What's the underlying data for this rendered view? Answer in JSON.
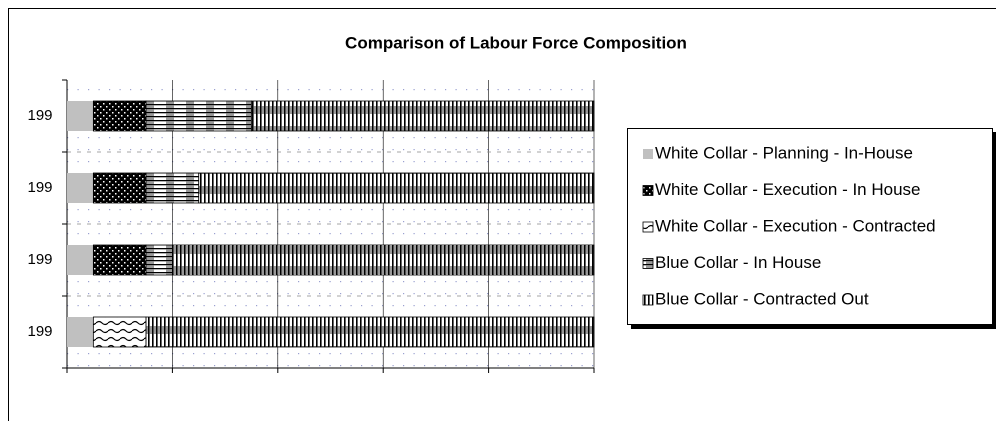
{
  "chart_data": {
    "type": "stacked_bar_horizontal",
    "title": "Comparison of Labour Force Composition",
    "categories": [
      "199",
      "199",
      "199",
      "199"
    ],
    "series": [
      {
        "name": "White Collar - Planning - In-House",
        "color": "#c0c0c0",
        "values": [
          5,
          5,
          5,
          5
        ]
      },
      {
        "name": "White Collar - Execution - In House",
        "color": "#000000",
        "values": [
          10,
          10,
          10,
          0
        ]
      },
      {
        "name": "White Collar - Execution - Contracted",
        "color": "#000000",
        "values": [
          0,
          0,
          0,
          10
        ]
      },
      {
        "name": "Blue Collar - In House",
        "color": "#000000",
        "values": [
          20,
          10,
          5,
          0
        ]
      },
      {
        "name": "Blue Collar - Contracted Out",
        "color": "#000000",
        "values": [
          65,
          75,
          80,
          85
        ]
      }
    ],
    "xlim": [
      0,
      100
    ],
    "xticks": [
      0,
      20,
      40,
      60,
      80,
      100
    ],
    "grid": true,
    "legend": "right"
  }
}
